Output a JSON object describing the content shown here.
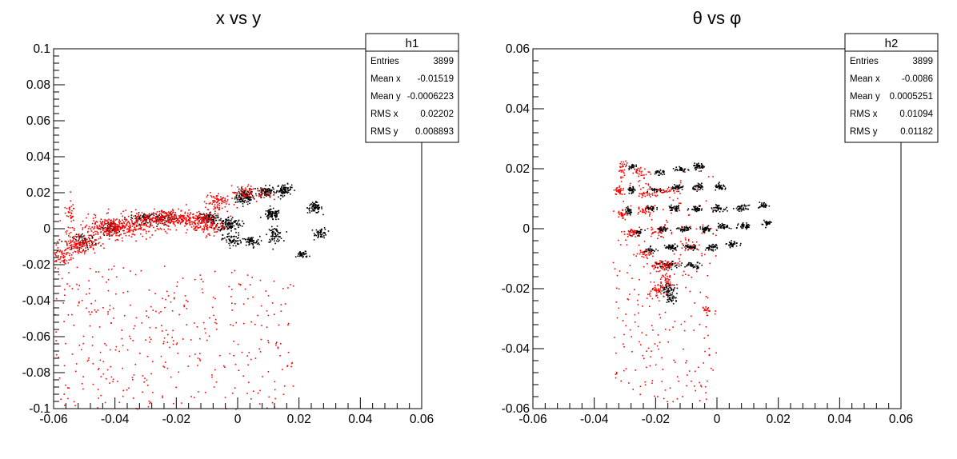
{
  "colors": {
    "series_black": "#000000",
    "series_red": "#ff0000",
    "frame": "#000000"
  },
  "chart_data": [
    {
      "type": "scatter",
      "title": "x vs y",
      "xlim": [
        -0.06,
        0.06
      ],
      "ylim": [
        -0.1,
        0.1
      ],
      "x_ticks": [
        "-0.06",
        "-0.04",
        "-0.02",
        "0",
        "0.02",
        "0.04",
        "0.06"
      ],
      "y_ticks": [
        "-0.1",
        "-0.08",
        "-0.06",
        "-0.04",
        "-0.02",
        "0",
        "0.02",
        "0.04",
        "0.06",
        "0.08",
        "0.1"
      ],
      "grid": false,
      "legend": "top-right",
      "stats": {
        "name": "h1",
        "rows": [
          {
            "label": "Entries",
            "value": "3899"
          },
          {
            "label": "Mean x",
            "value": "-0.01519"
          },
          {
            "label": "Mean y",
            "value": "-0.0006223"
          },
          {
            "label": "RMS x",
            "value": "0.02202"
          },
          {
            "label": "RMS y",
            "value": "0.008893"
          }
        ]
      },
      "series": [
        {
          "color": "#000000",
          "clusters": [
            {
              "x": 0.002,
              "y": 0.018,
              "sx": 0.0015,
              "sy": 0.002,
              "n": 120
            },
            {
              "x": 0.009,
              "y": 0.021,
              "sx": 0.0015,
              "sy": 0.0015,
              "n": 90
            },
            {
              "x": 0.015,
              "y": 0.022,
              "sx": 0.0012,
              "sy": 0.0015,
              "n": 80
            },
            {
              "x": 0.025,
              "y": 0.012,
              "sx": 0.0012,
              "sy": 0.0015,
              "n": 70
            },
            {
              "x": 0.011,
              "y": 0.008,
              "sx": 0.0014,
              "sy": 0.0015,
              "n": 80
            },
            {
              "x": 0.027,
              "y": -0.002,
              "sx": 0.001,
              "sy": 0.0015,
              "n": 50
            },
            {
              "x": 0.012,
              "y": -0.003,
              "sx": 0.0012,
              "sy": 0.002,
              "n": 70
            },
            {
              "x": 0.004,
              "y": -0.007,
              "sx": 0.0015,
              "sy": 0.0015,
              "n": 60
            },
            {
              "x": -0.003,
              "y": 0.003,
              "sx": 0.002,
              "sy": 0.002,
              "n": 120
            },
            {
              "x": -0.01,
              "y": 0.006,
              "sx": 0.0015,
              "sy": 0.0015,
              "n": 80
            },
            {
              "x": -0.002,
              "y": -0.006,
              "sx": 0.0015,
              "sy": 0.002,
              "n": 60
            },
            {
              "x": 0.021,
              "y": -0.014,
              "sx": 0.001,
              "sy": 0.001,
              "n": 40
            },
            {
              "x": -0.031,
              "y": 0.006,
              "sx": 0.002,
              "sy": 0.0015,
              "n": 70
            },
            {
              "x": -0.041,
              "y": 0.001,
              "sx": 0.002,
              "sy": 0.0015,
              "n": 70
            },
            {
              "x": -0.05,
              "y": -0.007,
              "sx": 0.002,
              "sy": 0.002,
              "n": 60
            },
            {
              "x": -0.024,
              "y": 0.006,
              "sx": 0.002,
              "sy": 0.0015,
              "n": 60
            }
          ]
        },
        {
          "color": "#ff0000",
          "clusters": [
            {
              "x": -0.04,
              "y": 0.001,
              "sx": 0.006,
              "sy": 0.003,
              "n": 350
            },
            {
              "x": -0.022,
              "y": 0.006,
              "sx": 0.006,
              "sy": 0.0025,
              "n": 300
            },
            {
              "x": -0.052,
              "y": -0.008,
              "sx": 0.003,
              "sy": 0.003,
              "n": 150
            },
            {
              "x": -0.011,
              "y": 0.003,
              "sx": 0.003,
              "sy": 0.003,
              "n": 150
            },
            {
              "x": -0.007,
              "y": 0.015,
              "sx": 0.002,
              "sy": 0.003,
              "n": 80
            },
            {
              "x": -0.058,
              "y": -0.015,
              "sx": 0.002,
              "sy": 0.003,
              "n": 60
            },
            {
              "x": -0.055,
              "y": 0.01,
              "sx": 0.0008,
              "sy": 0.003,
              "n": 30
            },
            {
              "x": 0.002,
              "y": 0.02,
              "sx": 0.002,
              "sy": 0.002,
              "n": 40
            },
            {
              "x": 0.007,
              "y": 0.02,
              "sx": 0.002,
              "sy": 0.002,
              "n": 30
            }
          ],
          "scatter": {
            "x0": -0.06,
            "x1": 0.018,
            "y0": -0.1,
            "y1": -0.02,
            "n": 380
          }
        }
      ]
    },
    {
      "type": "scatter",
      "title": "θ vs φ",
      "xlim": [
        -0.06,
        0.06
      ],
      "ylim": [
        -0.06,
        0.06
      ],
      "x_ticks": [
        "-0.06",
        "-0.04",
        "-0.02",
        "0",
        "0.02",
        "0.04",
        "0.06"
      ],
      "y_ticks": [
        "-0.06",
        "-0.04",
        "-0.02",
        "0",
        "0.02",
        "0.04",
        "0.06"
      ],
      "grid": false,
      "legend": "top-right",
      "stats": {
        "name": "h2",
        "rows": [
          {
            "label": "Entries",
            "value": "3899"
          },
          {
            "label": "Mean x",
            "value": "-0.0086"
          },
          {
            "label": "Mean y",
            "value": "0.0005251"
          },
          {
            "label": "RMS x",
            "value": "0.01094"
          },
          {
            "label": "RMS y",
            "value": "0.01182"
          }
        ]
      },
      "series": [
        {
          "color": "#000000",
          "clusters": [
            {
              "x": -0.028,
              "y": 0.021,
              "sx": 0.0006,
              "sy": 0.0005,
              "n": 25
            },
            {
              "x": -0.019,
              "y": 0.019,
              "sx": 0.001,
              "sy": 0.0005,
              "n": 30
            },
            {
              "x": -0.012,
              "y": 0.02,
              "sx": 0.001,
              "sy": 0.0005,
              "n": 30
            },
            {
              "x": -0.006,
              "y": 0.021,
              "sx": 0.001,
              "sy": 0.0005,
              "n": 40
            },
            {
              "x": -0.028,
              "y": 0.013,
              "sx": 0.0006,
              "sy": 0.0006,
              "n": 30
            },
            {
              "x": -0.02,
              "y": 0.013,
              "sx": 0.001,
              "sy": 0.0005,
              "n": 30
            },
            {
              "x": -0.013,
              "y": 0.014,
              "sx": 0.001,
              "sy": 0.0005,
              "n": 40
            },
            {
              "x": -0.006,
              "y": 0.014,
              "sx": 0.001,
              "sy": 0.0005,
              "n": 40
            },
            {
              "x": 0.001,
              "y": 0.014,
              "sx": 0.001,
              "sy": 0.0005,
              "n": 40
            },
            {
              "x": -0.029,
              "y": 0.006,
              "sx": 0.0006,
              "sy": 0.0006,
              "n": 30
            },
            {
              "x": -0.022,
              "y": 0.007,
              "sx": 0.001,
              "sy": 0.0005,
              "n": 35
            },
            {
              "x": -0.014,
              "y": 0.007,
              "sx": 0.001,
              "sy": 0.0005,
              "n": 40
            },
            {
              "x": -0.007,
              "y": 0.007,
              "sx": 0.001,
              "sy": 0.0005,
              "n": 40
            },
            {
              "x": 0.0,
              "y": 0.007,
              "sx": 0.001,
              "sy": 0.0005,
              "n": 40
            },
            {
              "x": 0.008,
              "y": 0.007,
              "sx": 0.001,
              "sy": 0.0005,
              "n": 40
            },
            {
              "x": 0.015,
              "y": 0.008,
              "sx": 0.0008,
              "sy": 0.0005,
              "n": 30
            },
            {
              "x": -0.026,
              "y": -0.001,
              "sx": 0.001,
              "sy": 0.0005,
              "n": 35
            },
            {
              "x": -0.018,
              "y": 0.0,
              "sx": 0.001,
              "sy": 0.0005,
              "n": 40
            },
            {
              "x": -0.011,
              "y": 0.0,
              "sx": 0.001,
              "sy": 0.0005,
              "n": 40
            },
            {
              "x": -0.004,
              "y": 0.0,
              "sx": 0.001,
              "sy": 0.0005,
              "n": 40
            },
            {
              "x": 0.002,
              "y": 0.001,
              "sx": 0.001,
              "sy": 0.0005,
              "n": 40
            },
            {
              "x": 0.009,
              "y": 0.001,
              "sx": 0.001,
              "sy": 0.0005,
              "n": 40
            },
            {
              "x": 0.016,
              "y": 0.002,
              "sx": 0.0008,
              "sy": 0.0005,
              "n": 30
            },
            {
              "x": -0.022,
              "y": -0.007,
              "sx": 0.001,
              "sy": 0.0005,
              "n": 30
            },
            {
              "x": -0.015,
              "y": -0.006,
              "sx": 0.001,
              "sy": 0.0005,
              "n": 40
            },
            {
              "x": -0.009,
              "y": -0.006,
              "sx": 0.001,
              "sy": 0.0005,
              "n": 40
            },
            {
              "x": -0.002,
              "y": -0.006,
              "sx": 0.001,
              "sy": 0.0005,
              "n": 40
            },
            {
              "x": 0.005,
              "y": -0.005,
              "sx": 0.001,
              "sy": 0.0005,
              "n": 35
            },
            {
              "x": -0.016,
              "y": -0.012,
              "sx": 0.002,
              "sy": 0.0006,
              "n": 50
            },
            {
              "x": -0.008,
              "y": -0.012,
              "sx": 0.0015,
              "sy": 0.0005,
              "n": 40
            },
            {
              "x": -0.016,
              "y": -0.02,
              "sx": 0.0012,
              "sy": 0.001,
              "n": 60
            },
            {
              "x": -0.015,
              "y": -0.023,
              "sx": 0.001,
              "sy": 0.0008,
              "n": 30
            }
          ]
        },
        {
          "color": "#ff0000",
          "clusters": [
            {
              "x": -0.031,
              "y": 0.02,
              "sx": 0.0006,
              "sy": 0.0015,
              "n": 25
            },
            {
              "x": -0.025,
              "y": 0.019,
              "sx": 0.0015,
              "sy": 0.0008,
              "n": 25
            },
            {
              "x": -0.032,
              "y": 0.013,
              "sx": 0.0008,
              "sy": 0.0008,
              "n": 30
            },
            {
              "x": -0.023,
              "y": 0.012,
              "sx": 0.0015,
              "sy": 0.0008,
              "n": 30
            },
            {
              "x": -0.016,
              "y": 0.013,
              "sx": 0.002,
              "sy": 0.0008,
              "n": 25
            },
            {
              "x": -0.031,
              "y": 0.005,
              "sx": 0.0008,
              "sy": 0.0008,
              "n": 25
            },
            {
              "x": -0.024,
              "y": 0.006,
              "sx": 0.0015,
              "sy": 0.0008,
              "n": 25
            },
            {
              "x": -0.028,
              "y": -0.001,
              "sx": 0.001,
              "sy": 0.0008,
              "n": 25
            },
            {
              "x": -0.02,
              "y": -0.001,
              "sx": 0.0015,
              "sy": 0.0008,
              "n": 20
            },
            {
              "x": -0.024,
              "y": -0.008,
              "sx": 0.0012,
              "sy": 0.0008,
              "n": 25
            },
            {
              "x": -0.018,
              "y": -0.012,
              "sx": 0.0025,
              "sy": 0.001,
              "n": 60
            },
            {
              "x": -0.017,
              "y": -0.017,
              "sx": 0.0012,
              "sy": 0.0015,
              "n": 40
            },
            {
              "x": -0.02,
              "y": -0.021,
              "sx": 0.0012,
              "sy": 0.0012,
              "n": 40
            },
            {
              "x": -0.004,
              "y": -0.027,
              "sx": 0.0008,
              "sy": 0.0006,
              "n": 15
            },
            {
              "x": -0.009,
              "y": -0.005,
              "sx": 0.0015,
              "sy": 0.0008,
              "n": 15
            }
          ],
          "scatter": {
            "x0": -0.034,
            "x1": 0.0,
            "y0": -0.058,
            "y1": 0.02,
            "n": 260
          }
        }
      ]
    }
  ]
}
